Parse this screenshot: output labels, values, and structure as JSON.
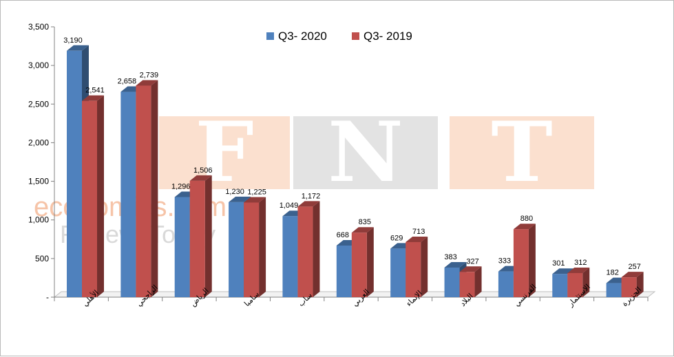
{
  "chart_data": {
    "type": "bar",
    "categories": [
      "الأهلي",
      "الراجحي",
      "الرياض",
      "سامبا",
      "ساب",
      "العربي",
      "الإنماء",
      "البلاد",
      "الفرنسي",
      "الاستثمار",
      "الجزيرة"
    ],
    "series": [
      {
        "name": "Q3- 2020",
        "color": "#4f81bd",
        "values": [
          3190,
          2658,
          1296,
          1230,
          1049,
          668,
          629,
          383,
          333,
          301,
          182
        ],
        "labels": [
          "3,190",
          "2,658",
          "1,296",
          "1,230",
          "1,049",
          "668",
          "629",
          "383",
          "333",
          "301",
          "182"
        ]
      },
      {
        "name": "Q3- 2019",
        "color": "#c0504d",
        "values": [
          2541,
          2739,
          1506,
          1225,
          1172,
          835,
          713,
          327,
          880,
          312,
          257
        ],
        "labels": [
          "2,541",
          "2,739",
          "1,506",
          "1,225",
          "1,172",
          "835",
          "713",
          "327",
          "880",
          "312",
          "257"
        ]
      }
    ],
    "yticks": [
      "-",
      "500",
      "1,000",
      "1,500",
      "2,000",
      "2,500",
      "3,000",
      "3,500"
    ],
    "ylim": [
      0,
      3500
    ],
    "grid": false,
    "legend_position": "top-center",
    "watermarks": [
      "F",
      "N",
      "T",
      "economies.com",
      "FxNewsToday"
    ]
  }
}
